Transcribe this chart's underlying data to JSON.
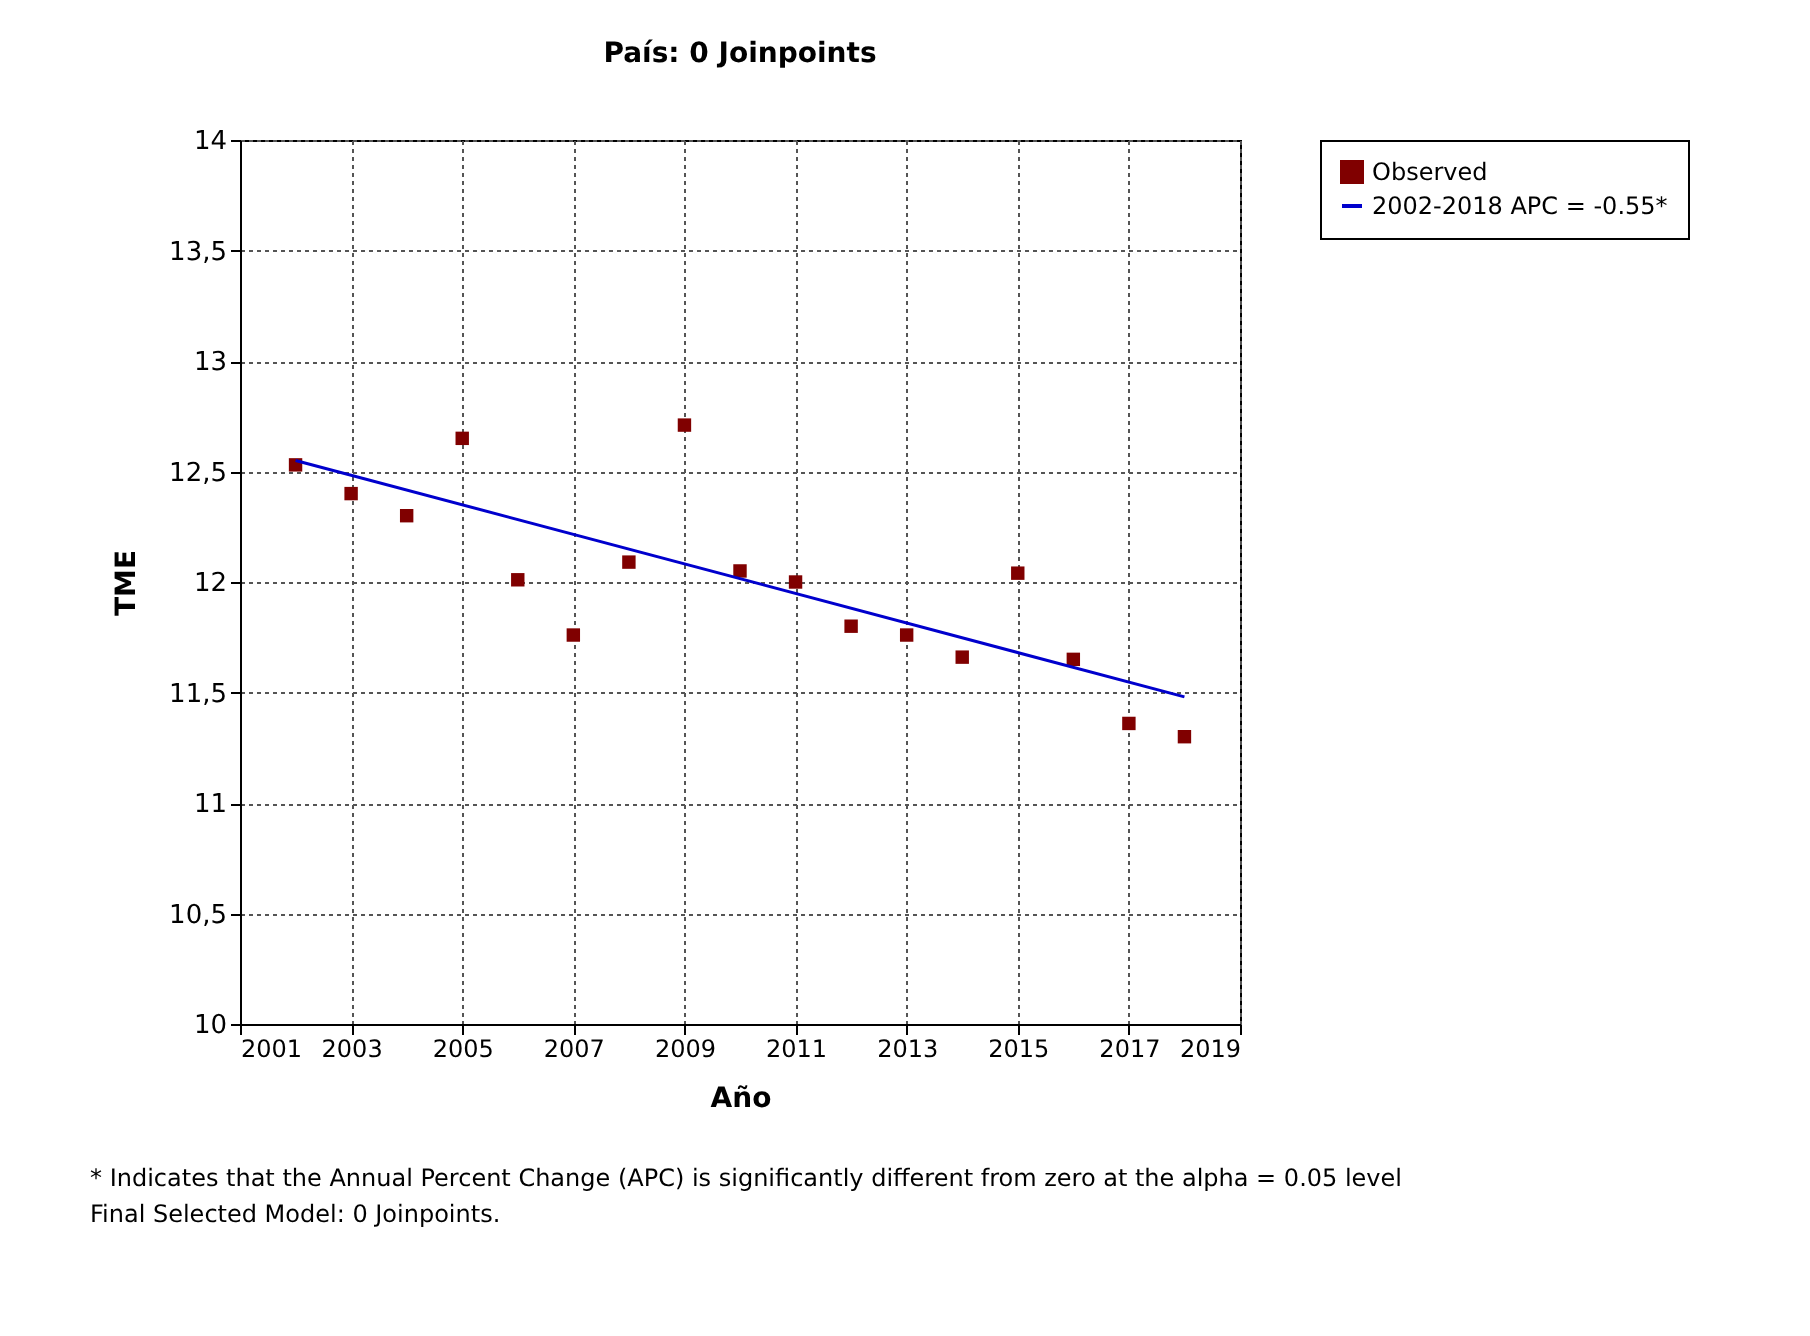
{
  "chart_data": {
    "type": "scatter",
    "title": "País: 0 Joinpoints",
    "xlabel": "Año",
    "ylabel": "TME",
    "xlim": [
      2001,
      2019
    ],
    "xticks": [
      2001,
      2003,
      2005,
      2007,
      2009,
      2011,
      2013,
      2015,
      2017,
      2019
    ],
    "ylim": [
      10,
      14
    ],
    "yticks": [
      10,
      {
        "value": 10.5,
        "label": "10,5"
      },
      11,
      {
        "value": 11.5,
        "label": "11,5"
      },
      12,
      {
        "value": 12.5,
        "label": "12,5"
      },
      13,
      {
        "value": 13.5,
        "label": "13,5"
      },
      14
    ],
    "grid": true,
    "legend": "right",
    "series": [
      {
        "name": "Observed",
        "marker": "square",
        "color": "#800000",
        "x": [
          2002,
          2003,
          2004,
          2005,
          2006,
          2007,
          2008,
          2009,
          2010,
          2011,
          2012,
          2013,
          2014,
          2015,
          2016,
          2017,
          2018
        ],
        "values": [
          12.53,
          12.4,
          12.3,
          12.65,
          12.01,
          11.76,
          12.09,
          12.71,
          12.05,
          12.0,
          11.8,
          11.76,
          11.66,
          12.04,
          11.65,
          11.36,
          11.3
        ]
      },
      {
        "name": "2002-2018 APC = -0.55*",
        "type": "line",
        "color": "#0000cd",
        "x": [
          2002,
          2018
        ],
        "values": [
          12.55,
          11.48
        ]
      }
    ],
    "annotations": [
      "* Indicates that the Annual Percent Change (APC) is significantly different from zero at the alpha = 0.05 level",
      "Final Selected Model: 0 Joinpoints."
    ]
  }
}
